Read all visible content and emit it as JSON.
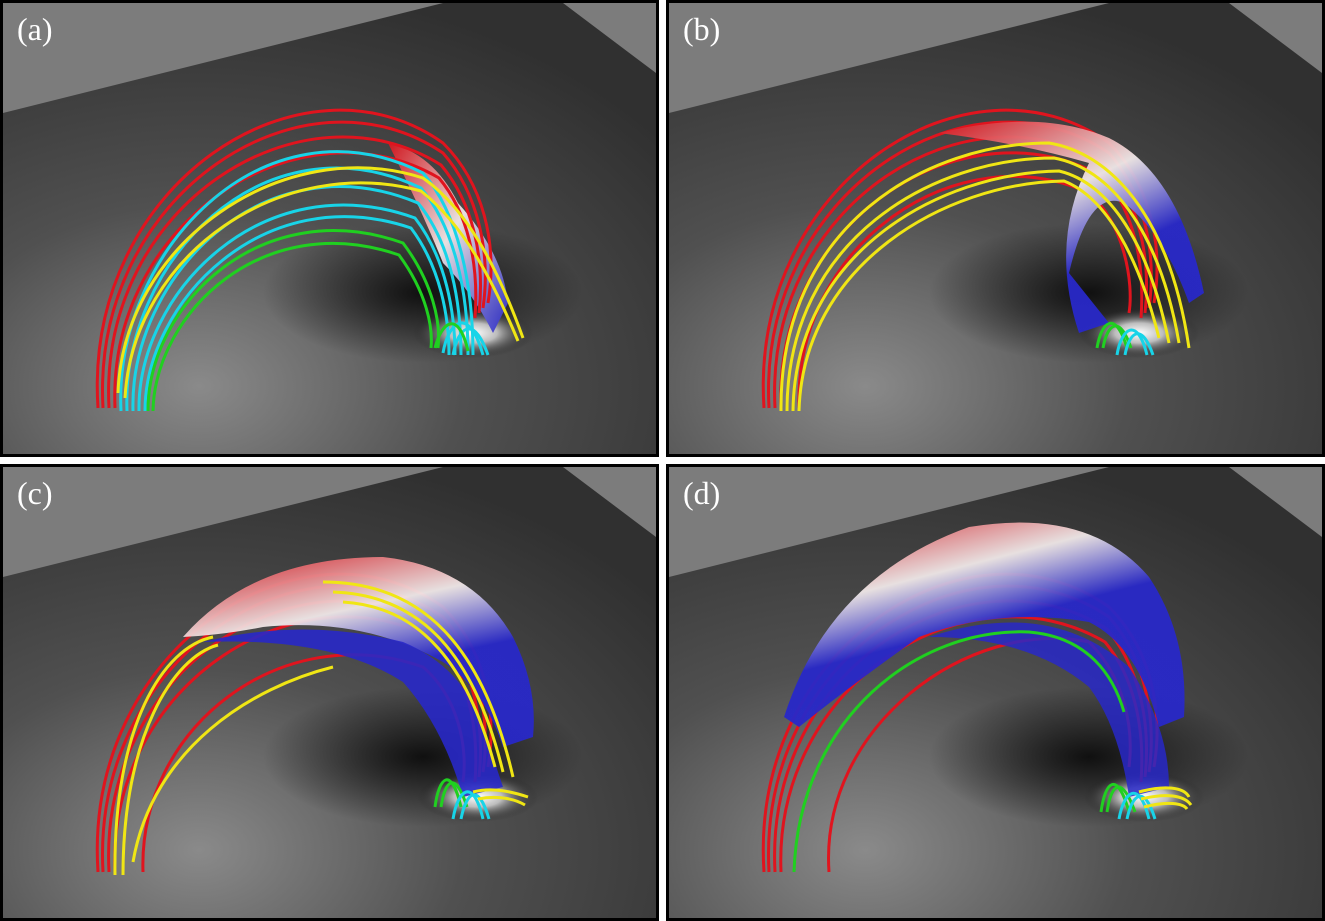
{
  "panels": [
    {
      "label": "(a)"
    },
    {
      "label": "(b)"
    },
    {
      "label": "(c)"
    },
    {
      "label": "(d)"
    }
  ],
  "colors": {
    "background_wall": "#7c7c7c",
    "background_floor": "#3c3c3c",
    "field_line_red": "#e0141e",
    "field_line_cyan": "#18d4e8",
    "field_line_yellow": "#f0e614",
    "field_line_green": "#20d020",
    "surface_red": "#d8141c",
    "surface_white": "#e8e8ec",
    "surface_blue": "#2828c8"
  }
}
